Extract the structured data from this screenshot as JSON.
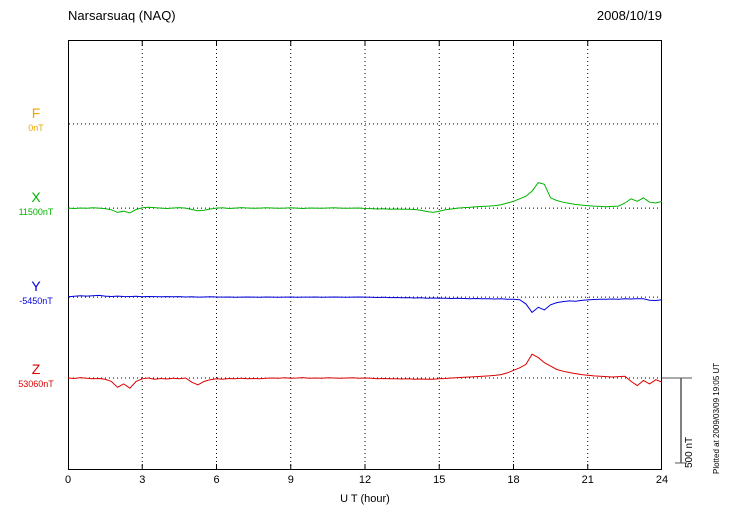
{
  "header": {
    "title": "Narsarsuaq (NAQ)",
    "date": "2008/10/19"
  },
  "axis": {
    "x_ticks": [
      "0",
      "3",
      "6",
      "9",
      "12",
      "15",
      "18",
      "21",
      "24"
    ],
    "x_label": "U T (hour)"
  },
  "scalebar": {
    "label": "500 nT"
  },
  "credit": "Plotted at 2009/03/09 19:05 UT",
  "chart_data": {
    "type": "line",
    "title": "Narsarsuaq (NAQ) magnetogram",
    "date": "2008/10/19",
    "xlabel": "U T (hour)",
    "x_range_hours": [
      0,
      24
    ],
    "x_start": 0,
    "x_step_hours": 0.25,
    "y_unit": "nT deviation from component baseline",
    "scale_reference": {
      "nT": 500,
      "px": 85
    },
    "grid": "dotted vertical lines every 3 hours; dotted horizontal baseline per component; legend as colored component labels at left",
    "series": [
      {
        "name": "F",
        "baseline_label": "0nT",
        "color": "#f0a500",
        "baseline_frac": 0.195,
        "values": []
      },
      {
        "name": "X",
        "baseline_label": "11500nT",
        "color": "#00b400",
        "baseline_frac": 0.391,
        "values": [
          0,
          -2,
          1,
          -1,
          2,
          0,
          -3,
          -10,
          -25,
          -18,
          -28,
          -8,
          2,
          5,
          3,
          0,
          -2,
          1,
          3,
          0,
          -8,
          -15,
          -12,
          -5,
          0,
          2,
          -2,
          0,
          3,
          1,
          -1,
          0,
          2,
          1,
          -1,
          0,
          2,
          0,
          -2,
          1,
          0,
          -1,
          1,
          2,
          0,
          -1,
          0,
          1,
          -2,
          -3,
          -5,
          -4,
          -6,
          -5,
          -7,
          -6,
          -8,
          -12,
          -20,
          -25,
          -18,
          -10,
          -5,
          0,
          3,
          5,
          8,
          10,
          12,
          15,
          20,
          30,
          40,
          55,
          70,
          100,
          150,
          140,
          60,
          45,
          35,
          28,
          22,
          18,
          15,
          12,
          10,
          8,
          10,
          12,
          30,
          55,
          40,
          60,
          35,
          30,
          40
        ]
      },
      {
        "name": "Y",
        "baseline_label": "-5450nT",
        "color": "#0000dc",
        "baseline_frac": 0.598,
        "values": [
          2,
          5,
          8,
          6,
          8,
          10,
          6,
          4,
          6,
          4,
          3,
          5,
          2,
          4,
          3,
          2,
          3,
          2,
          3,
          1,
          2,
          0,
          1,
          2,
          1,
          0,
          1,
          -1,
          0,
          1,
          0,
          -1,
          1,
          0,
          -1,
          0,
          1,
          -1,
          0,
          0,
          1,
          -1,
          0,
          1,
          0,
          -1,
          0,
          1,
          0,
          -1,
          -2,
          -1,
          -3,
          -2,
          -4,
          -3,
          -5,
          -4,
          -6,
          -5,
          -7,
          -6,
          -8,
          -7,
          -8,
          -9,
          -8,
          -10,
          -9,
          -11,
          -10,
          -12,
          -12,
          -15,
          -40,
          -90,
          -60,
          -75,
          -45,
          -32,
          -26,
          -22,
          -24,
          -19,
          -16,
          -14,
          -12,
          -13,
          -11,
          -12,
          -10,
          -11,
          -9,
          -10,
          -18,
          -20,
          -15
        ]
      },
      {
        "name": "Z",
        "baseline_label": "53060nT",
        "color": "#dc0000",
        "baseline_frac": 0.786,
        "values": [
          0,
          -3,
          2,
          -2,
          -5,
          -3,
          -8,
          -20,
          -55,
          -35,
          -60,
          -20,
          -5,
          0,
          -8,
          -3,
          -6,
          -2,
          -5,
          0,
          -25,
          -40,
          -20,
          -10,
          -5,
          -8,
          -3,
          -5,
          -2,
          -4,
          -3,
          -5,
          -2,
          0,
          -2,
          1,
          -1,
          0,
          2,
          -1,
          0,
          -2,
          1,
          0,
          -1,
          0,
          1,
          -1,
          0,
          -2,
          -4,
          -3,
          -5,
          -4,
          -6,
          -5,
          -7,
          -6,
          -8,
          -7,
          -5,
          -3,
          0,
          2,
          4,
          6,
          8,
          10,
          12,
          15,
          20,
          30,
          45,
          60,
          80,
          140,
          120,
          90,
          70,
          50,
          40,
          32,
          26,
          20,
          16,
          12,
          10,
          8,
          6,
          8,
          10,
          -20,
          -45,
          -15,
          -35,
          -10,
          -25
        ]
      }
    ]
  }
}
